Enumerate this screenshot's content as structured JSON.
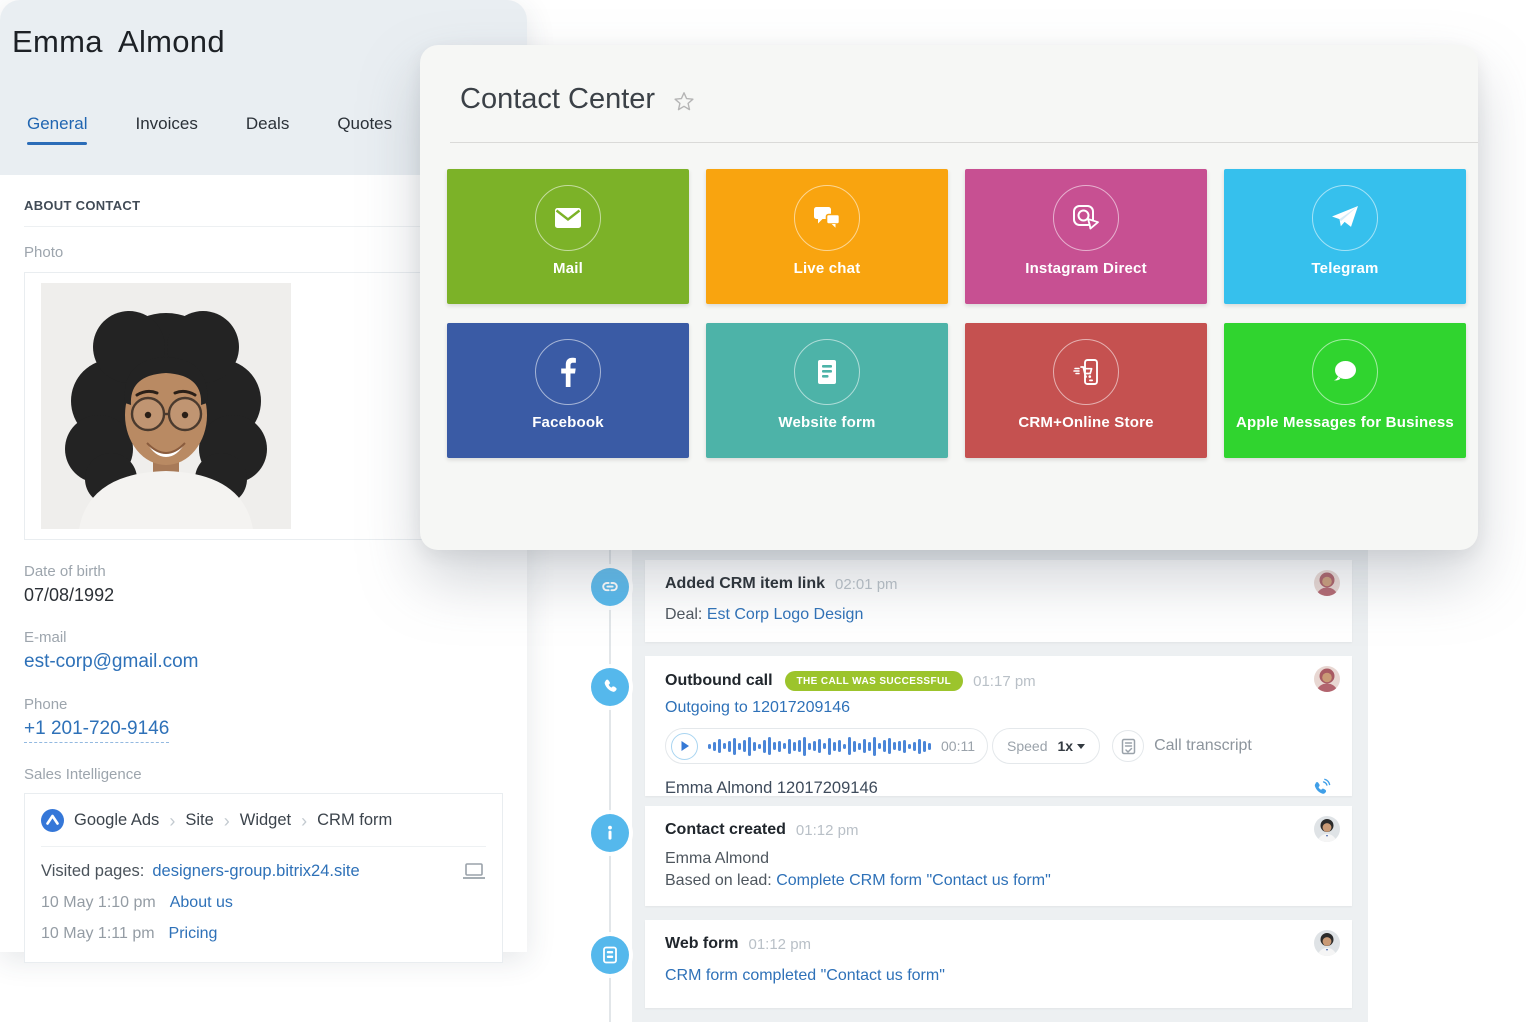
{
  "contact_panel": {
    "title": "Emma Almond",
    "tabs": [
      {
        "label": "General",
        "active": true
      },
      {
        "label": "Invoices",
        "active": false
      },
      {
        "label": "Deals",
        "active": false
      },
      {
        "label": "Quotes",
        "active": false
      }
    ],
    "section_title": "ABOUT CONTACT",
    "photo_label": "Photo",
    "fields": {
      "dob_label": "Date of birth",
      "dob_value": "07/08/1992",
      "email_label": "E-mail",
      "email_value": "est-corp@gmail.com",
      "phone_label": "Phone",
      "phone_value": "+1 201-720-9146"
    },
    "sales_intelligence": {
      "label": "Sales Intelligence",
      "breadcrumb": {
        "0": "Google Ads",
        "1": "Site",
        "2": "Widget",
        "3": "CRM form"
      },
      "separator": "›",
      "visited_pages_label": "Visited pages:",
      "visited_pages_link": "designers-group.bitrix24.site",
      "visits": {
        "0": {
          "time": "10 May 1:10 pm",
          "page": "About us"
        },
        "1": {
          "time": "10 May 1:11 pm",
          "page": "Pricing"
        }
      },
      "icons": {
        "source": "google-ads-icon",
        "device": "laptop-icon"
      }
    }
  },
  "contact_center": {
    "title": "Contact Center",
    "favorite_icon": "star-icon",
    "tiles": {
      "0": {
        "label": "Mail",
        "color": "#7cb228",
        "icon": "mail-icon"
      },
      "1": {
        "label": "Live chat",
        "color": "#f9a40f",
        "icon": "live-chat-icon"
      },
      "2": {
        "label": "Instagram Direct",
        "color": "#c75092",
        "icon": "instagram-direct-icon"
      },
      "3": {
        "label": "Telegram",
        "color": "#36c0ed",
        "icon": "telegram-icon"
      },
      "4": {
        "label": "Facebook",
        "color": "#3a5ba5",
        "icon": "facebook-icon"
      },
      "5": {
        "label": "Website form",
        "color": "#4db3a8",
        "icon": "website-form-icon"
      },
      "6": {
        "label": "CRM+Online Store",
        "color": "#c55150",
        "icon": "crm-online-store-icon"
      },
      "7": {
        "label": "Apple Messages for Business",
        "color": "#30d42f",
        "icon": "apple-messages-icon"
      }
    }
  },
  "timeline": {
    "entries": {
      "0": {
        "icon": "crm-link-icon",
        "title": "Added CRM item link",
        "time": "02:01 pm",
        "row_label": "Deal:",
        "row_link": "Est Corp Logo Design"
      },
      "1": {
        "icon": "outbound-call-icon",
        "title": "Outbound call",
        "badge": "THE CALL WAS SUCCESSFUL",
        "time": "01:17 pm",
        "link": "Outgoing to 12017209146",
        "player": {
          "play_icon": "play-icon",
          "duration": "00:11",
          "speed_label": "Speed",
          "speed_value": "1x",
          "transcript_icon": "transcript-icon",
          "transcript_label": "Call transcript"
        },
        "footer": "Emma Almond 12017209146",
        "footer_icon": "phone-callback-icon"
      },
      "2": {
        "icon": "info-icon",
        "title": "Contact created",
        "time": "01:12 pm",
        "line1": "Emma Almond",
        "row_label": "Based on lead:",
        "row_link": "Complete CRM form \"Contact us form\""
      },
      "3": {
        "icon": "web-form-icon",
        "title": "Web form",
        "time": "01:12 pm",
        "link": "CRM form completed \"Contact us form\""
      }
    }
  },
  "colors": {
    "accent_link_blue": "#2e71b8",
    "active_tab_blue": "#2065b1",
    "timeline_icon_blue": "#55b8ec",
    "call_badge_green": "#9cc42c",
    "waveform_blue": "#4b86d8",
    "panel_header_gray": "#e9eef2",
    "contact_center_bg": "#f6f7f5",
    "timeline_backdrop": "#edf0f2"
  }
}
